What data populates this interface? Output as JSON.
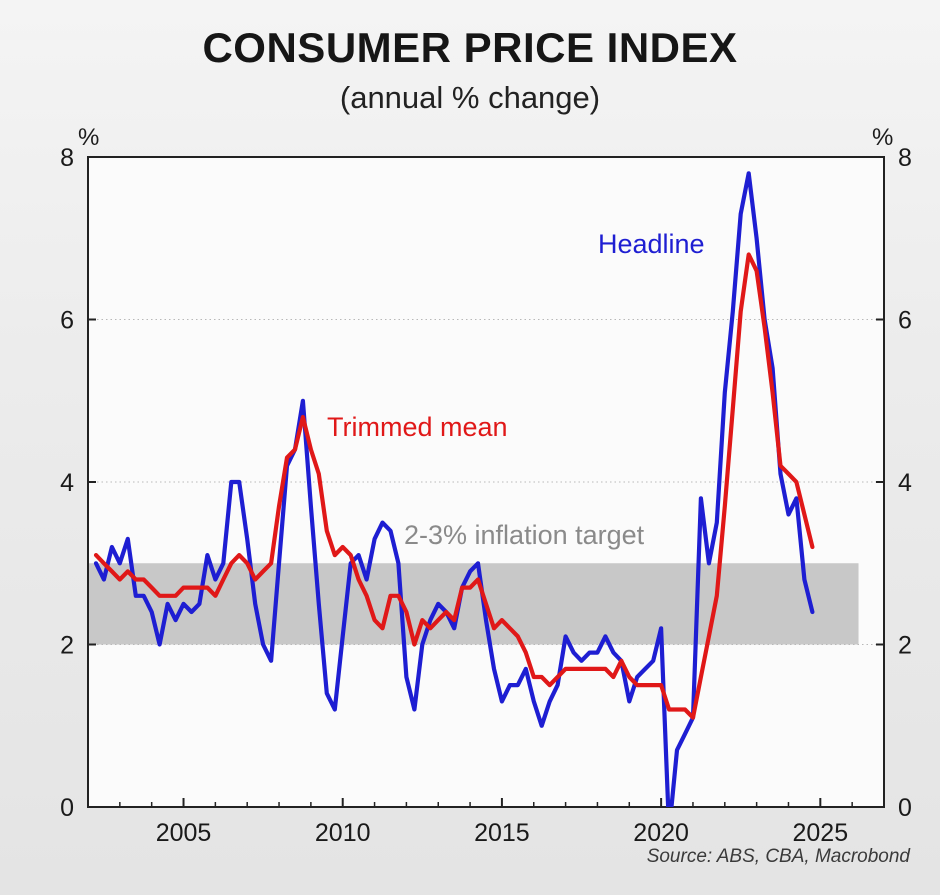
{
  "title": "CONSUMER PRICE INDEX",
  "subtitle": "(annual % change)",
  "unit_left": "%",
  "unit_right": "%",
  "source": "Source: ABS, CBA, Macrobond",
  "chart_data": {
    "type": "line",
    "title": "CONSUMER PRICE INDEX",
    "subtitle": "(annual % change)",
    "ylabel": "%",
    "ylim": [
      0,
      8
    ],
    "xlim": [
      2002.0,
      2027.0
    ],
    "y_ticks": [
      0,
      2,
      4,
      6,
      8
    ],
    "x_ticks": [
      2005,
      2010,
      2015,
      2020,
      2025
    ],
    "grid": "horizontal dotted",
    "band": {
      "label": "2-3% inflation target",
      "low": 2,
      "high": 3,
      "x_start": 2002.0,
      "x_end": 2026.2,
      "color": "#c8c8c8"
    },
    "colors": {
      "Headline": "#1e1ed2",
      "Trimmed mean": "#e01818",
      "band_label": "#8a8a8a"
    },
    "series": [
      {
        "name": "Headline",
        "points": [
          [
            2002.25,
            3.0
          ],
          [
            2002.5,
            2.8
          ],
          [
            2002.75,
            3.2
          ],
          [
            2003.0,
            3.0
          ],
          [
            2003.25,
            3.3
          ],
          [
            2003.5,
            2.6
          ],
          [
            2003.75,
            2.6
          ],
          [
            2004.0,
            2.4
          ],
          [
            2004.25,
            2.0
          ],
          [
            2004.5,
            2.5
          ],
          [
            2004.75,
            2.3
          ],
          [
            2005.0,
            2.5
          ],
          [
            2005.25,
            2.4
          ],
          [
            2005.5,
            2.5
          ],
          [
            2005.75,
            3.1
          ],
          [
            2006.0,
            2.8
          ],
          [
            2006.25,
            3.0
          ],
          [
            2006.5,
            4.0
          ],
          [
            2006.75,
            4.0
          ],
          [
            2007.0,
            3.3
          ],
          [
            2007.25,
            2.5
          ],
          [
            2007.5,
            2.0
          ],
          [
            2007.75,
            1.8
          ],
          [
            2008.0,
            3.0
          ],
          [
            2008.25,
            4.2
          ],
          [
            2008.5,
            4.4
          ],
          [
            2008.75,
            5.0
          ],
          [
            2009.0,
            3.7
          ],
          [
            2009.25,
            2.5
          ],
          [
            2009.5,
            1.4
          ],
          [
            2009.75,
            1.2
          ],
          [
            2010.0,
            2.1
          ],
          [
            2010.25,
            3.0
          ],
          [
            2010.5,
            3.1
          ],
          [
            2010.75,
            2.8
          ],
          [
            2011.0,
            3.3
          ],
          [
            2011.25,
            3.5
          ],
          [
            2011.5,
            3.4
          ],
          [
            2011.75,
            3.0
          ],
          [
            2012.0,
            1.6
          ],
          [
            2012.25,
            1.2
          ],
          [
            2012.5,
            2.0
          ],
          [
            2012.75,
            2.3
          ],
          [
            2013.0,
            2.5
          ],
          [
            2013.25,
            2.4
          ],
          [
            2013.5,
            2.2
          ],
          [
            2013.75,
            2.7
          ],
          [
            2014.0,
            2.9
          ],
          [
            2014.25,
            3.0
          ],
          [
            2014.5,
            2.3
          ],
          [
            2014.75,
            1.7
          ],
          [
            2015.0,
            1.3
          ],
          [
            2015.25,
            1.5
          ],
          [
            2015.5,
            1.5
          ],
          [
            2015.75,
            1.7
          ],
          [
            2016.0,
            1.3
          ],
          [
            2016.25,
            1.0
          ],
          [
            2016.5,
            1.3
          ],
          [
            2016.75,
            1.5
          ],
          [
            2017.0,
            2.1
          ],
          [
            2017.25,
            1.9
          ],
          [
            2017.5,
            1.8
          ],
          [
            2017.75,
            1.9
          ],
          [
            2018.0,
            1.9
          ],
          [
            2018.25,
            2.1
          ],
          [
            2018.5,
            1.9
          ],
          [
            2018.75,
            1.8
          ],
          [
            2019.0,
            1.3
          ],
          [
            2019.25,
            1.6
          ],
          [
            2019.5,
            1.7
          ],
          [
            2019.75,
            1.8
          ],
          [
            2020.0,
            2.2
          ],
          [
            2020.25,
            -0.3
          ],
          [
            2020.5,
            0.7
          ],
          [
            2020.75,
            0.9
          ],
          [
            2021.0,
            1.1
          ],
          [
            2021.25,
            3.8
          ],
          [
            2021.5,
            3.0
          ],
          [
            2021.75,
            3.5
          ],
          [
            2022.0,
            5.1
          ],
          [
            2022.25,
            6.1
          ],
          [
            2022.5,
            7.3
          ],
          [
            2022.75,
            7.8
          ],
          [
            2023.0,
            7.0
          ],
          [
            2023.25,
            6.0
          ],
          [
            2023.5,
            5.4
          ],
          [
            2023.75,
            4.1
          ],
          [
            2024.0,
            3.6
          ],
          [
            2024.25,
            3.8
          ],
          [
            2024.5,
            2.8
          ],
          [
            2024.75,
            2.4
          ]
        ]
      },
      {
        "name": "Trimmed mean",
        "points": [
          [
            2002.25,
            3.1
          ],
          [
            2002.5,
            3.0
          ],
          [
            2002.75,
            2.9
          ],
          [
            2003.0,
            2.8
          ],
          [
            2003.25,
            2.9
          ],
          [
            2003.5,
            2.8
          ],
          [
            2003.75,
            2.8
          ],
          [
            2004.0,
            2.7
          ],
          [
            2004.25,
            2.6
          ],
          [
            2004.5,
            2.6
          ],
          [
            2004.75,
            2.6
          ],
          [
            2005.0,
            2.7
          ],
          [
            2005.25,
            2.7
          ],
          [
            2005.5,
            2.7
          ],
          [
            2005.75,
            2.7
          ],
          [
            2006.0,
            2.6
          ],
          [
            2006.25,
            2.8
          ],
          [
            2006.5,
            3.0
          ],
          [
            2006.75,
            3.1
          ],
          [
            2007.0,
            3.0
          ],
          [
            2007.25,
            2.8
          ],
          [
            2007.5,
            2.9
          ],
          [
            2007.75,
            3.0
          ],
          [
            2008.0,
            3.7
          ],
          [
            2008.25,
            4.3
          ],
          [
            2008.5,
            4.4
          ],
          [
            2008.75,
            4.8
          ],
          [
            2009.0,
            4.4
          ],
          [
            2009.25,
            4.1
          ],
          [
            2009.5,
            3.4
          ],
          [
            2009.75,
            3.1
          ],
          [
            2010.0,
            3.2
          ],
          [
            2010.25,
            3.1
          ],
          [
            2010.5,
            2.8
          ],
          [
            2010.75,
            2.6
          ],
          [
            2011.0,
            2.3
          ],
          [
            2011.25,
            2.2
          ],
          [
            2011.5,
            2.6
          ],
          [
            2011.75,
            2.6
          ],
          [
            2012.0,
            2.4
          ],
          [
            2012.25,
            2.0
          ],
          [
            2012.5,
            2.3
          ],
          [
            2012.75,
            2.2
          ],
          [
            2013.0,
            2.3
          ],
          [
            2013.25,
            2.4
          ],
          [
            2013.5,
            2.3
          ],
          [
            2013.75,
            2.7
          ],
          [
            2014.0,
            2.7
          ],
          [
            2014.25,
            2.8
          ],
          [
            2014.5,
            2.5
          ],
          [
            2014.75,
            2.2
          ],
          [
            2015.0,
            2.3
          ],
          [
            2015.25,
            2.2
          ],
          [
            2015.5,
            2.1
          ],
          [
            2015.75,
            1.9
          ],
          [
            2016.0,
            1.6
          ],
          [
            2016.25,
            1.6
          ],
          [
            2016.5,
            1.5
          ],
          [
            2016.75,
            1.6
          ],
          [
            2017.0,
            1.7
          ],
          [
            2017.25,
            1.7
          ],
          [
            2017.5,
            1.7
          ],
          [
            2017.75,
            1.7
          ],
          [
            2018.0,
            1.7
          ],
          [
            2018.25,
            1.7
          ],
          [
            2018.5,
            1.6
          ],
          [
            2018.75,
            1.8
          ],
          [
            2019.0,
            1.6
          ],
          [
            2019.25,
            1.5
          ],
          [
            2019.5,
            1.5
          ],
          [
            2019.75,
            1.5
          ],
          [
            2020.0,
            1.5
          ],
          [
            2020.25,
            1.2
          ],
          [
            2020.5,
            1.2
          ],
          [
            2020.75,
            1.2
          ],
          [
            2021.0,
            1.1
          ],
          [
            2021.25,
            1.6
          ],
          [
            2021.5,
            2.1
          ],
          [
            2021.75,
            2.6
          ],
          [
            2022.0,
            3.7
          ],
          [
            2022.25,
            4.9
          ],
          [
            2022.5,
            6.1
          ],
          [
            2022.75,
            6.8
          ],
          [
            2023.0,
            6.6
          ],
          [
            2023.25,
            5.9
          ],
          [
            2023.5,
            5.1
          ],
          [
            2023.75,
            4.2
          ],
          [
            2024.0,
            4.1
          ],
          [
            2024.25,
            4.0
          ],
          [
            2024.5,
            3.6
          ],
          [
            2024.75,
            3.2
          ]
        ]
      }
    ],
    "annotations": [
      {
        "text": "Headline",
        "series": "Headline"
      },
      {
        "text": "Trimmed mean",
        "series": "Trimmed mean"
      },
      {
        "text": "2-3% inflation target",
        "series": "band"
      }
    ]
  }
}
